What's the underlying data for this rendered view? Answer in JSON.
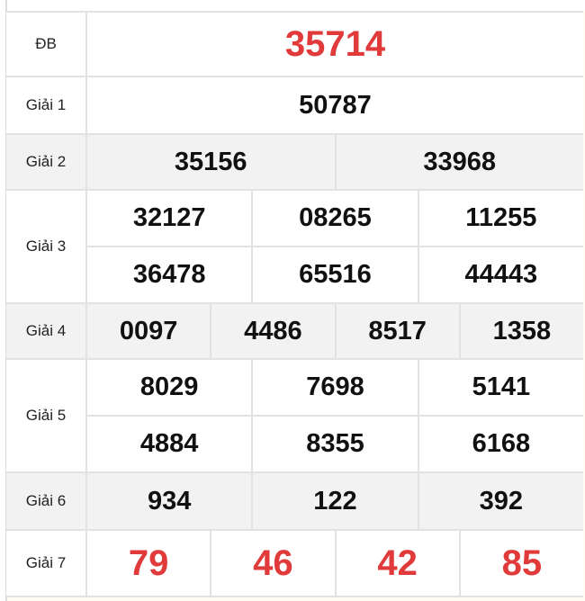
{
  "colors": {
    "highlight": "#e03a3a",
    "text": "#111111",
    "alt_row": "#f2f2f2",
    "border": "#e2e2e2"
  },
  "rows": [
    {
      "label": "ĐB",
      "values": [
        [
          "35714"
        ]
      ]
    },
    {
      "label": "Giải 1",
      "values": [
        [
          "50787"
        ]
      ]
    },
    {
      "label": "Giải 2",
      "values": [
        [
          "35156",
          "33968"
        ]
      ]
    },
    {
      "label": "Giải 3",
      "values": [
        [
          "32127",
          "08265",
          "11255"
        ],
        [
          "36478",
          "65516",
          "44443"
        ]
      ]
    },
    {
      "label": "Giải 4",
      "values": [
        [
          "0097",
          "4486",
          "8517",
          "1358"
        ]
      ]
    },
    {
      "label": "Giải 5",
      "values": [
        [
          "8029",
          "7698",
          "5141"
        ],
        [
          "4884",
          "8355",
          "6168"
        ]
      ]
    },
    {
      "label": "Giải 6",
      "values": [
        [
          "934",
          "122",
          "392"
        ]
      ]
    },
    {
      "label": "Giải 7",
      "values": [
        [
          "79",
          "46",
          "42",
          "85"
        ]
      ]
    }
  ]
}
